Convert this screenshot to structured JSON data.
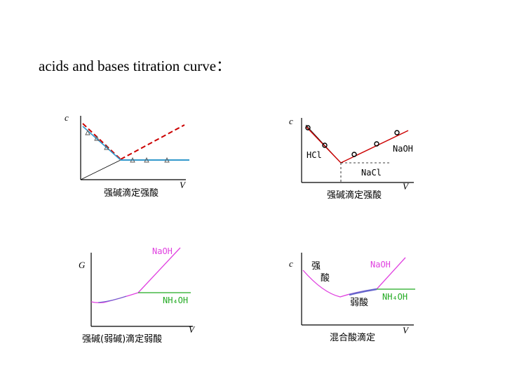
{
  "title": "acids and bases titration curve：",
  "colors": {
    "red": "#cc0000",
    "blue": "#3399cc",
    "magenta": "#e040e0",
    "green": "#22aa22",
    "purple": "#6666cc"
  },
  "panels": [
    {
      "y_axis": "c",
      "x_axis": "V",
      "caption": "强碱滴定强酸",
      "labels": []
    },
    {
      "y_axis": "c",
      "x_axis": "V",
      "caption": "强碱滴定强酸",
      "labels": [
        "HCl",
        "NaOH",
        "NaCl"
      ]
    },
    {
      "y_axis": "G",
      "x_axis": "V",
      "caption": "强碱(弱碱)滴定弱酸",
      "labels": [
        "NaOH",
        "NH₄OH"
      ]
    },
    {
      "y_axis": "c",
      "x_axis": "V",
      "caption": "混合酸滴定",
      "labels": [
        "强",
        "酸",
        "NaOH",
        "弱酸",
        "NH₄OH"
      ]
    }
  ]
}
